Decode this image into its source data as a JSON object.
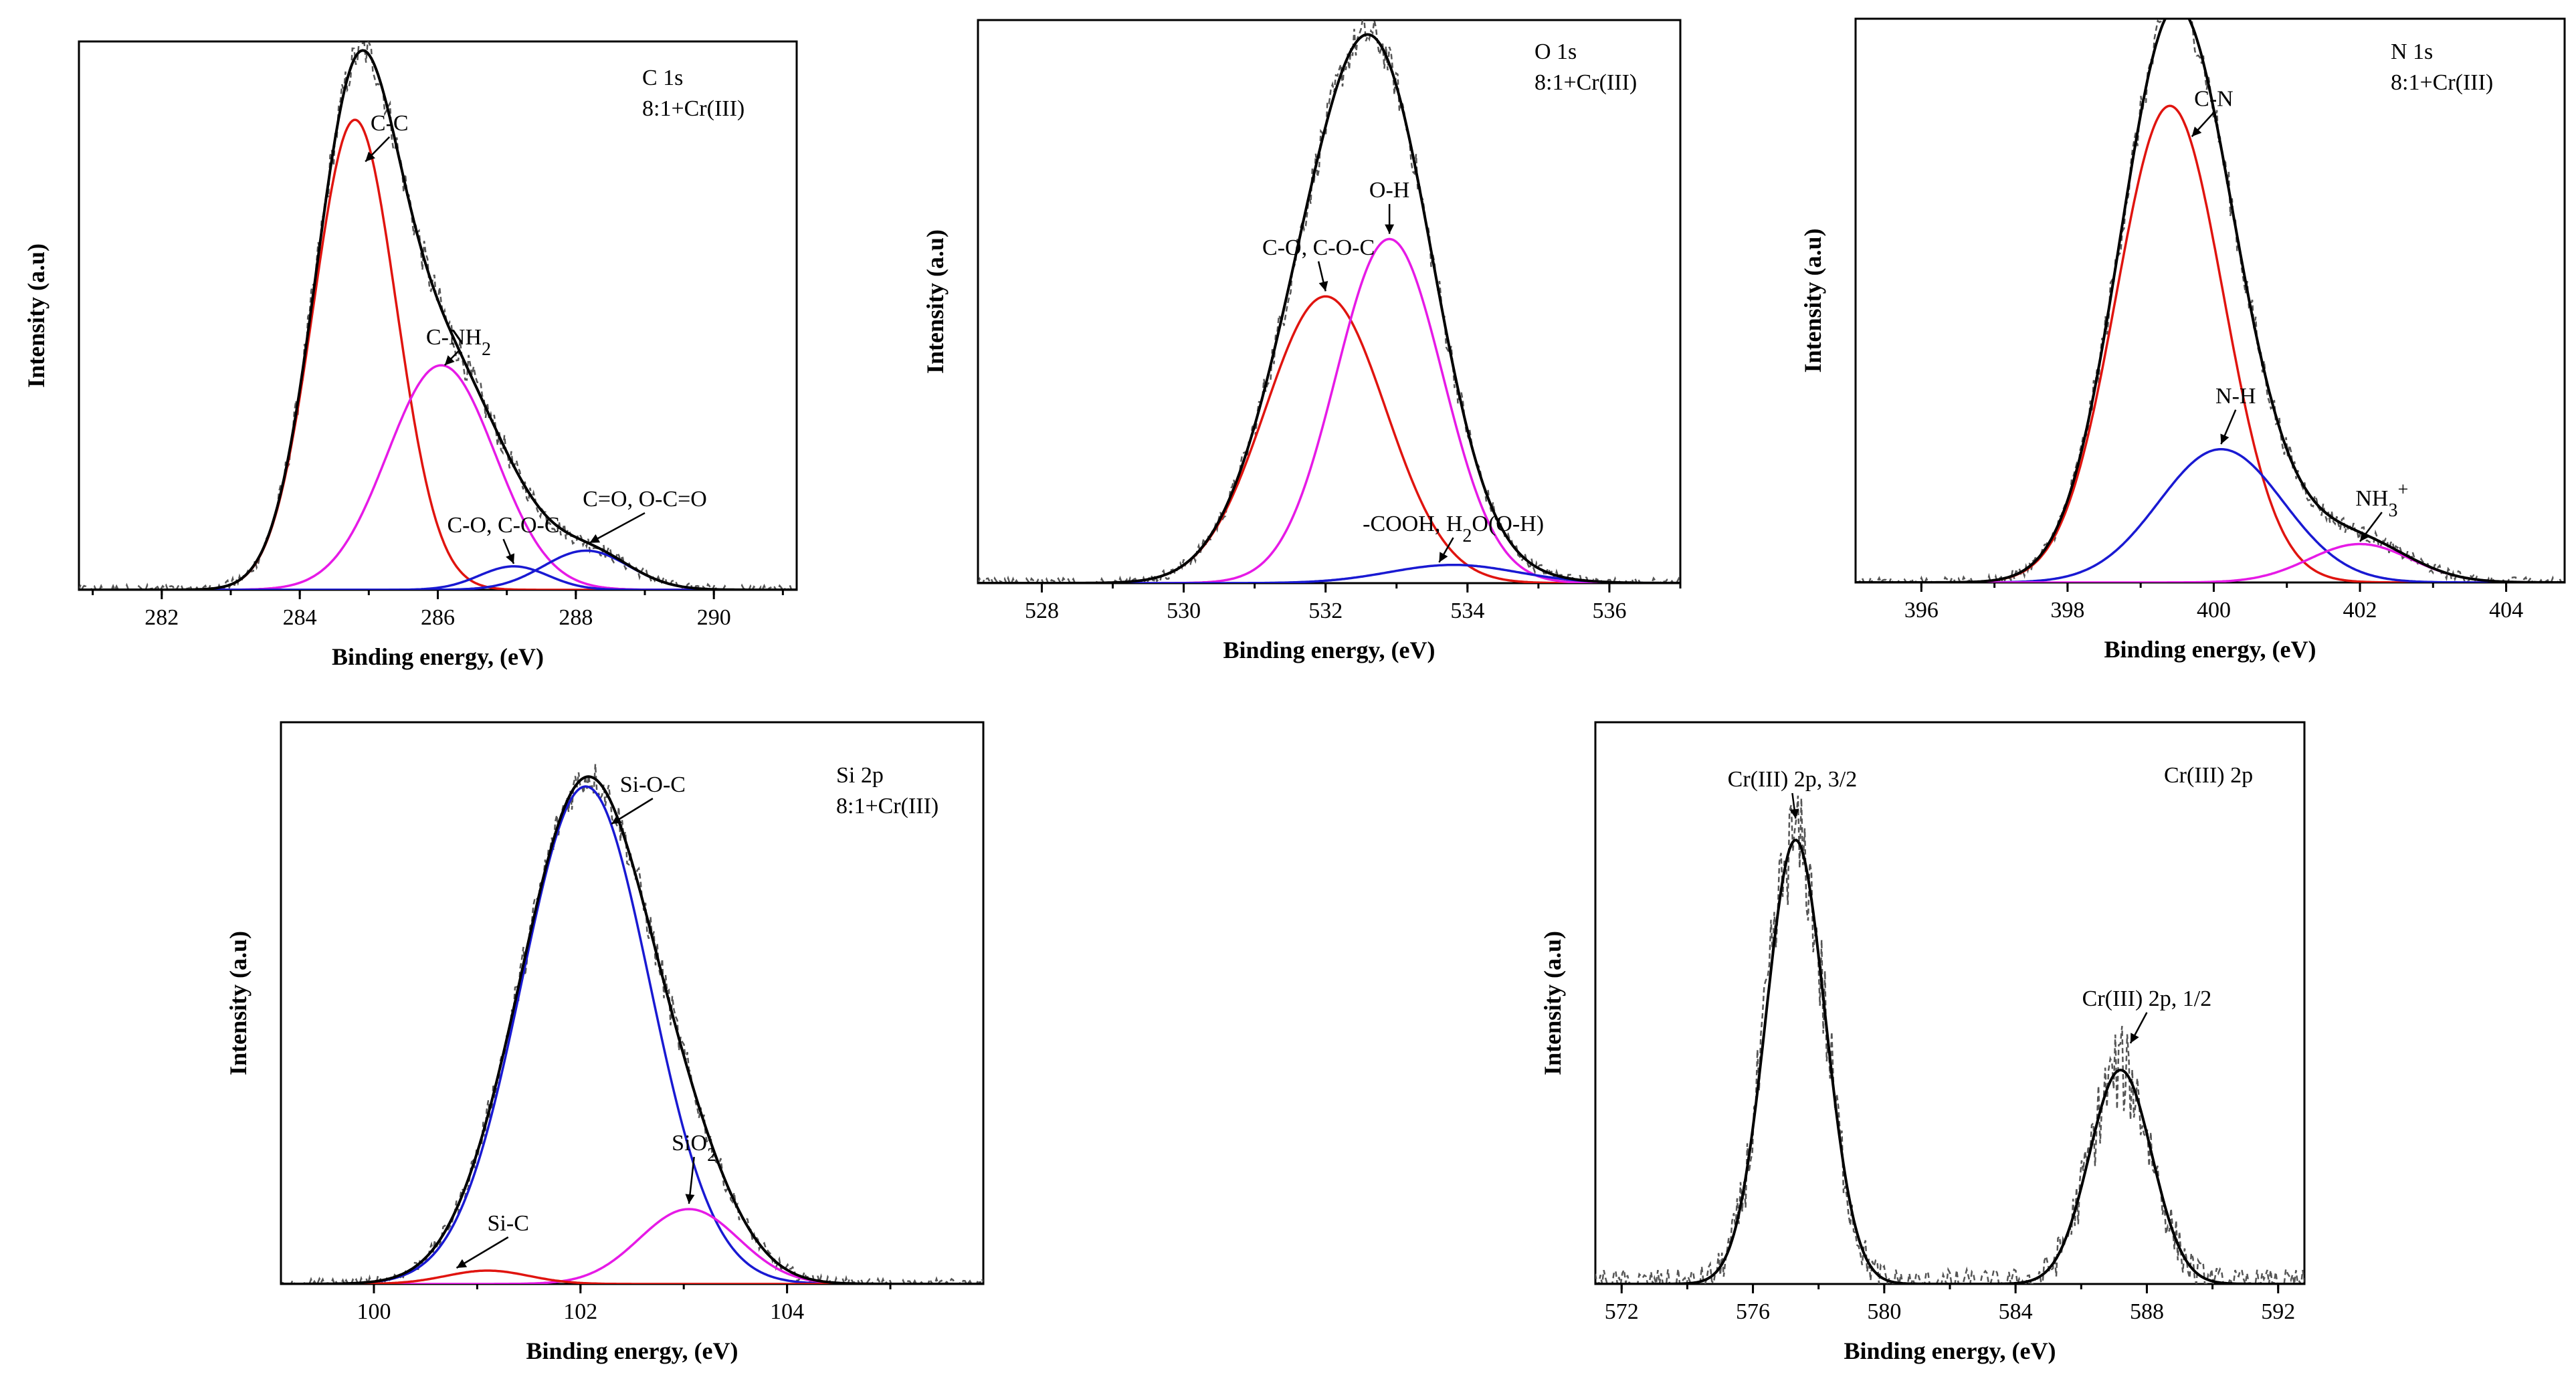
{
  "colors": {
    "red": "#e0140f",
    "magenta": "#e61ae6",
    "blue": "#1919d2",
    "black": "#000000",
    "raw": "#555555"
  },
  "chart_data": [
    {
      "type": "line",
      "id": "c1s",
      "title": "C 1s",
      "subtitle": "8:1+Cr(III)",
      "xlabel": "Binding energy, (eV)",
      "ylabel": "Intensity (a.u)",
      "xlim": [
        280.8,
        291.2
      ],
      "ylim": [
        0,
        1.05
      ],
      "xticks": [
        282,
        284,
        286,
        288,
        290
      ],
      "components": [
        {
          "label": "C-C",
          "center": 284.8,
          "amp": 0.9,
          "sigma": 0.6,
          "color": "red"
        },
        {
          "label": "C-NH2",
          "center": 286.05,
          "amp": 0.43,
          "sigma": 0.78,
          "color": "magenta"
        },
        {
          "label": "C-O, C-O-C",
          "center": 287.1,
          "amp": 0.045,
          "sigma": 0.5,
          "color": "blue"
        },
        {
          "label": "C=O, O-C=O",
          "center": 288.15,
          "amp": 0.075,
          "sigma": 0.62,
          "color": "blue"
        }
      ],
      "annotations": [
        {
          "text": "C-C",
          "tx": 285.3,
          "ty": 0.88,
          "ax": 284.95,
          "ay": 0.82
        },
        {
          "text": "C-NH",
          "sub": "2",
          "tx": 286.3,
          "ty": 0.47,
          "ax": 286.1,
          "ay": 0.43
        },
        {
          "text": "C-O, C-O-C",
          "tx": 286.95,
          "ty": 0.11,
          "ax": 287.1,
          "ay": 0.05
        },
        {
          "text": "C=O, O-C=O",
          "tx": 289.0,
          "ty": 0.16,
          "ax": 288.2,
          "ay": 0.09
        }
      ]
    },
    {
      "type": "line",
      "id": "o1s",
      "title": "O 1s",
      "subtitle": "8:1+Cr(III)",
      "xlabel": "Binding energy, (eV)",
      "ylabel": "Intensity (a.u)",
      "xlim": [
        527.1,
        537.0
      ],
      "ylim": [
        0,
        1.08
      ],
      "xticks": [
        528,
        530,
        532,
        534,
        536
      ],
      "components": [
        {
          "label": "C-O, C-O-C",
          "center": 532.0,
          "amp": 0.55,
          "sigma": 0.85,
          "color": "red"
        },
        {
          "label": "O-H",
          "center": 532.9,
          "amp": 0.66,
          "sigma": 0.75,
          "color": "magenta"
        },
        {
          "label": "-COOH, H2O(O-H)",
          "center": 533.8,
          "amp": 0.035,
          "sigma": 0.9,
          "color": "blue"
        }
      ],
      "annotations": [
        {
          "text": "C-O, C-O-C",
          "tx": 531.9,
          "ty": 0.63,
          "ax": 532.0,
          "ay": 0.56
        },
        {
          "text": "O-H",
          "tx": 532.9,
          "ty": 0.74,
          "ax": 532.9,
          "ay": 0.67
        },
        {
          "text": "-COOH, H",
          "sub": "2",
          "tail": "O(O-H)",
          "tx": 533.8,
          "ty": 0.1,
          "ax": 533.6,
          "ay": 0.04
        }
      ]
    },
    {
      "type": "line",
      "id": "n1s",
      "title": "N 1s",
      "subtitle": "8:1+Cr(III)",
      "xlabel": "Binding energy, (eV)",
      "ylabel": "Intensity (a.u)",
      "xlim": [
        395.1,
        404.8
      ],
      "ylim": [
        0,
        1.1
      ],
      "xticks": [
        396,
        398,
        400,
        402,
        404
      ],
      "components": [
        {
          "label": "C-N",
          "center": 399.4,
          "amp": 0.93,
          "sigma": 0.73,
          "color": "red"
        },
        {
          "label": "N-H",
          "center": 400.1,
          "amp": 0.26,
          "sigma": 0.85,
          "color": "blue"
        },
        {
          "label": "NH3+",
          "center": 402.0,
          "amp": 0.075,
          "sigma": 0.7,
          "color": "magenta"
        }
      ],
      "annotations": [
        {
          "text": "C-N",
          "tx": 400.0,
          "ty": 0.93,
          "ax": 399.7,
          "ay": 0.87
        },
        {
          "text": "N-H",
          "tx": 400.3,
          "ty": 0.35,
          "ax": 400.1,
          "ay": 0.27
        },
        {
          "text": "NH",
          "sub": "3",
          "sup": "+",
          "tx": 402.3,
          "ty": 0.15,
          "ax": 402.0,
          "ay": 0.08
        }
      ]
    },
    {
      "type": "line",
      "id": "si2p",
      "title": "Si 2p",
      "subtitle": "8:1+Cr(III)",
      "xlabel": "Binding energy, (eV)",
      "ylabel": "Intensity (a.u)",
      "xlim": [
        99.1,
        105.9
      ],
      "ylim": [
        0,
        1.05
      ],
      "xticks": [
        100,
        102,
        104
      ],
      "components": [
        {
          "label": "Si-O-C",
          "center": 102.05,
          "amp": 0.93,
          "sigma": 0.62,
          "color": "blue"
        },
        {
          "label": "SiO2",
          "center": 103.05,
          "amp": 0.14,
          "sigma": 0.48,
          "color": "magenta"
        },
        {
          "label": "Si-C",
          "center": 101.1,
          "amp": 0.025,
          "sigma": 0.4,
          "color": "red"
        }
      ],
      "annotations": [
        {
          "text": "Si-O-C",
          "tx": 102.7,
          "ty": 0.92,
          "ax": 102.3,
          "ay": 0.86
        },
        {
          "text": "SiO",
          "sub": "2",
          "tx": 103.1,
          "ty": 0.25,
          "ax": 103.05,
          "ay": 0.15
        },
        {
          "text": "Si-C",
          "tx": 101.3,
          "ty": 0.1,
          "ax": 100.8,
          "ay": 0.03
        }
      ]
    },
    {
      "type": "line",
      "id": "cr2p",
      "title": "Cr(III) 2p",
      "subtitle": "",
      "xlabel": "Binding energy, (eV)",
      "ylabel": "Intensity (a.u)",
      "xlim": [
        571.2,
        592.8
      ],
      "ylim": [
        0,
        1.05
      ],
      "xticks": [
        572,
        576,
        580,
        584,
        588,
        592
      ],
      "components": [
        {
          "label": "Cr(III) 2p, 3/2",
          "center": 577.3,
          "amp": 0.83,
          "sigma": 0.9,
          "color": "black"
        },
        {
          "label": "Cr(III) 2p, 1/2",
          "center": 587.2,
          "amp": 0.4,
          "sigma": 0.95,
          "color": "black"
        }
      ],
      "annotations": [
        {
          "text": "Cr(III) 2p, 3/2",
          "tx": 577.2,
          "ty": 0.93,
          "ax": 577.3,
          "ay": 0.87
        },
        {
          "text": "Cr(III) 2p, 1/2",
          "tx": 588.0,
          "ty": 0.52,
          "ax": 587.5,
          "ay": 0.45
        }
      ]
    }
  ]
}
